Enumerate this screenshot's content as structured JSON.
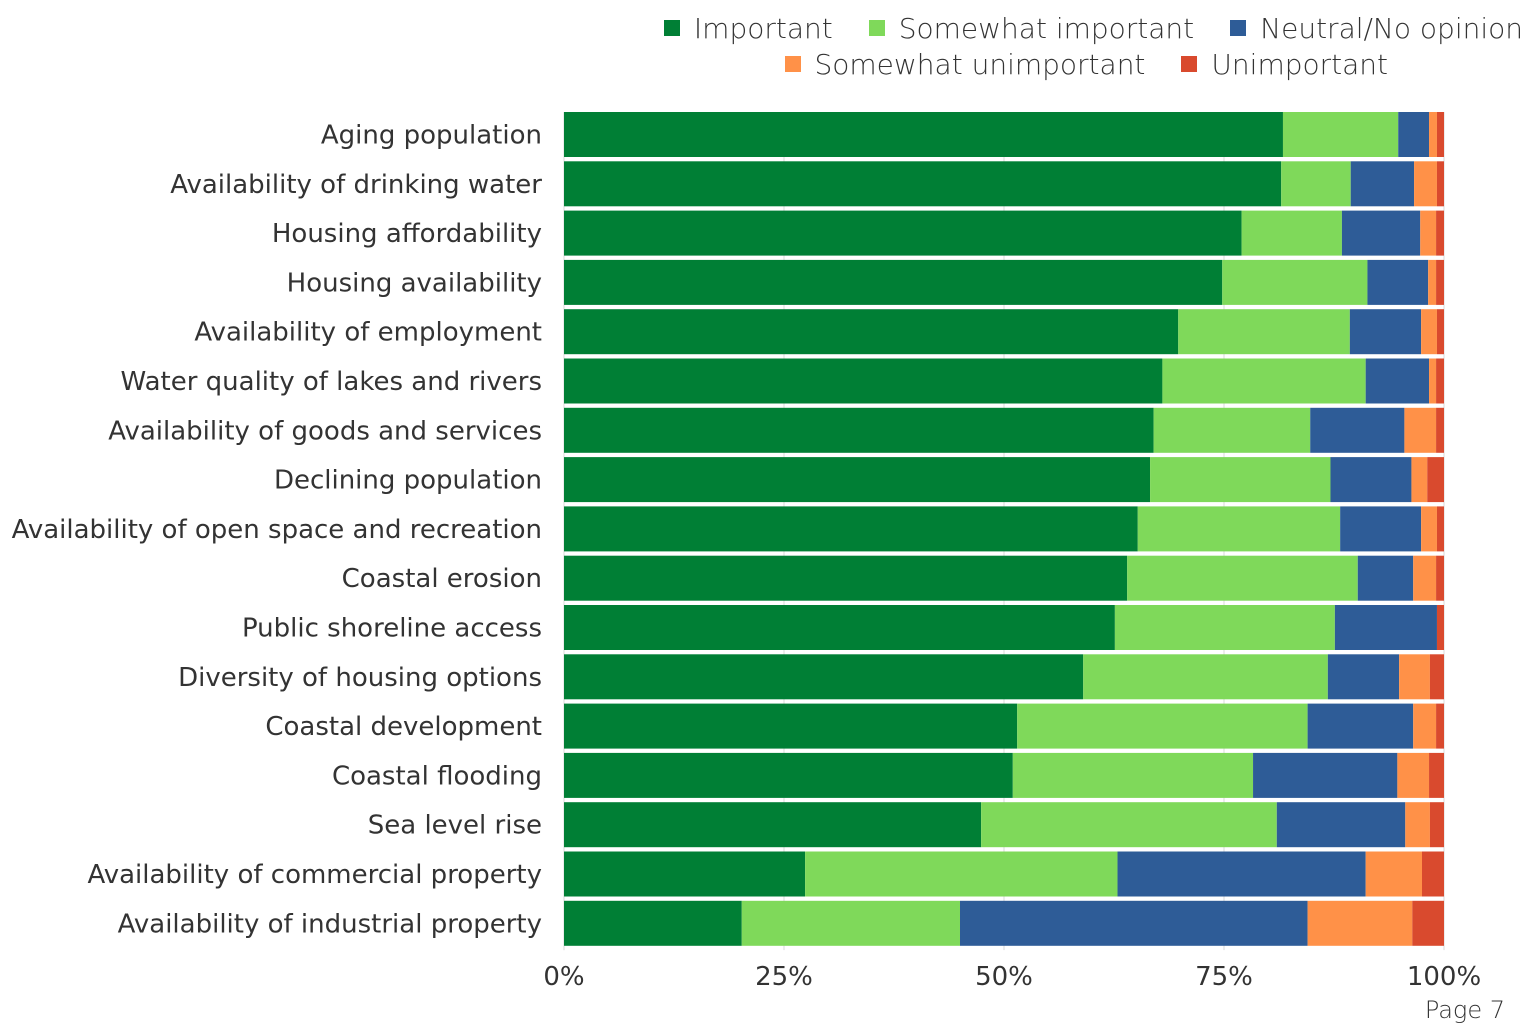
{
  "chart_data": {
    "type": "bar",
    "orientation": "horizontal",
    "stacked": true,
    "categories": [
      "Aging population",
      "Availability of drinking water",
      "Housing affordability",
      "Housing availability",
      "Availability of employment",
      "Water quality of lakes and rivers",
      "Availability of goods and services",
      "Declining population",
      "Availability of open space and recreation",
      "Coastal erosion",
      "Public shoreline access",
      "Diversity of housing options",
      "Coastal development",
      "Coastal flooding",
      "Sea level rise",
      "Availability of commercial property",
      "Availability of industrial property"
    ],
    "series": [
      {
        "name": "Important",
        "color": "#007f35",
        "values": [
          81.7,
          81.5,
          77.0,
          74.8,
          69.8,
          68.0,
          67.0,
          66.6,
          65.2,
          64.0,
          62.6,
          59.0,
          51.5,
          51.0,
          47.4,
          27.4,
          20.2
        ]
      },
      {
        "name": "Somewhat important",
        "color": "#7fd95a",
        "values": [
          13.1,
          7.9,
          11.4,
          16.5,
          19.5,
          23.1,
          17.8,
          20.5,
          23.0,
          26.2,
          25.0,
          27.8,
          33.0,
          27.3,
          33.6,
          35.5,
          24.8
        ]
      },
      {
        "name": "Neutral/No opinion",
        "color": "#2e5c97",
        "values": [
          3.5,
          7.2,
          8.9,
          6.9,
          8.1,
          7.2,
          10.7,
          9.2,
          9.2,
          6.3,
          11.6,
          8.1,
          12.0,
          16.4,
          14.6,
          28.2,
          39.5
        ]
      },
      {
        "name": "Somewhat unimportant",
        "color": "#ff9148",
        "values": [
          0.9,
          2.6,
          1.8,
          0.9,
          1.8,
          0.8,
          3.6,
          1.8,
          1.8,
          2.6,
          0.0,
          3.5,
          2.6,
          3.6,
          2.8,
          6.4,
          11.9
        ]
      },
      {
        "name": "Unimportant",
        "color": "#d94a2e",
        "values": [
          0.8,
          0.8,
          0.9,
          0.9,
          0.8,
          0.9,
          0.9,
          1.9,
          0.8,
          0.9,
          0.8,
          1.6,
          0.9,
          1.7,
          1.6,
          2.5,
          3.6
        ]
      }
    ],
    "xlim": [
      0,
      100
    ],
    "x_ticks": [
      "0%",
      "25%",
      "50%",
      "75%",
      "100%"
    ],
    "grid": true,
    "legend_position": "top-right"
  },
  "legend": {
    "items": [
      {
        "label": "Important",
        "color": "#007f35"
      },
      {
        "label": "Somewhat important",
        "color": "#7fd95a"
      },
      {
        "label": "Neutral/No opinion",
        "color": "#2e5c97"
      },
      {
        "label": "Somewhat unimportant",
        "color": "#ff9148"
      },
      {
        "label": "Unimportant",
        "color": "#d94a2e"
      }
    ]
  },
  "page_label": "Page 7"
}
